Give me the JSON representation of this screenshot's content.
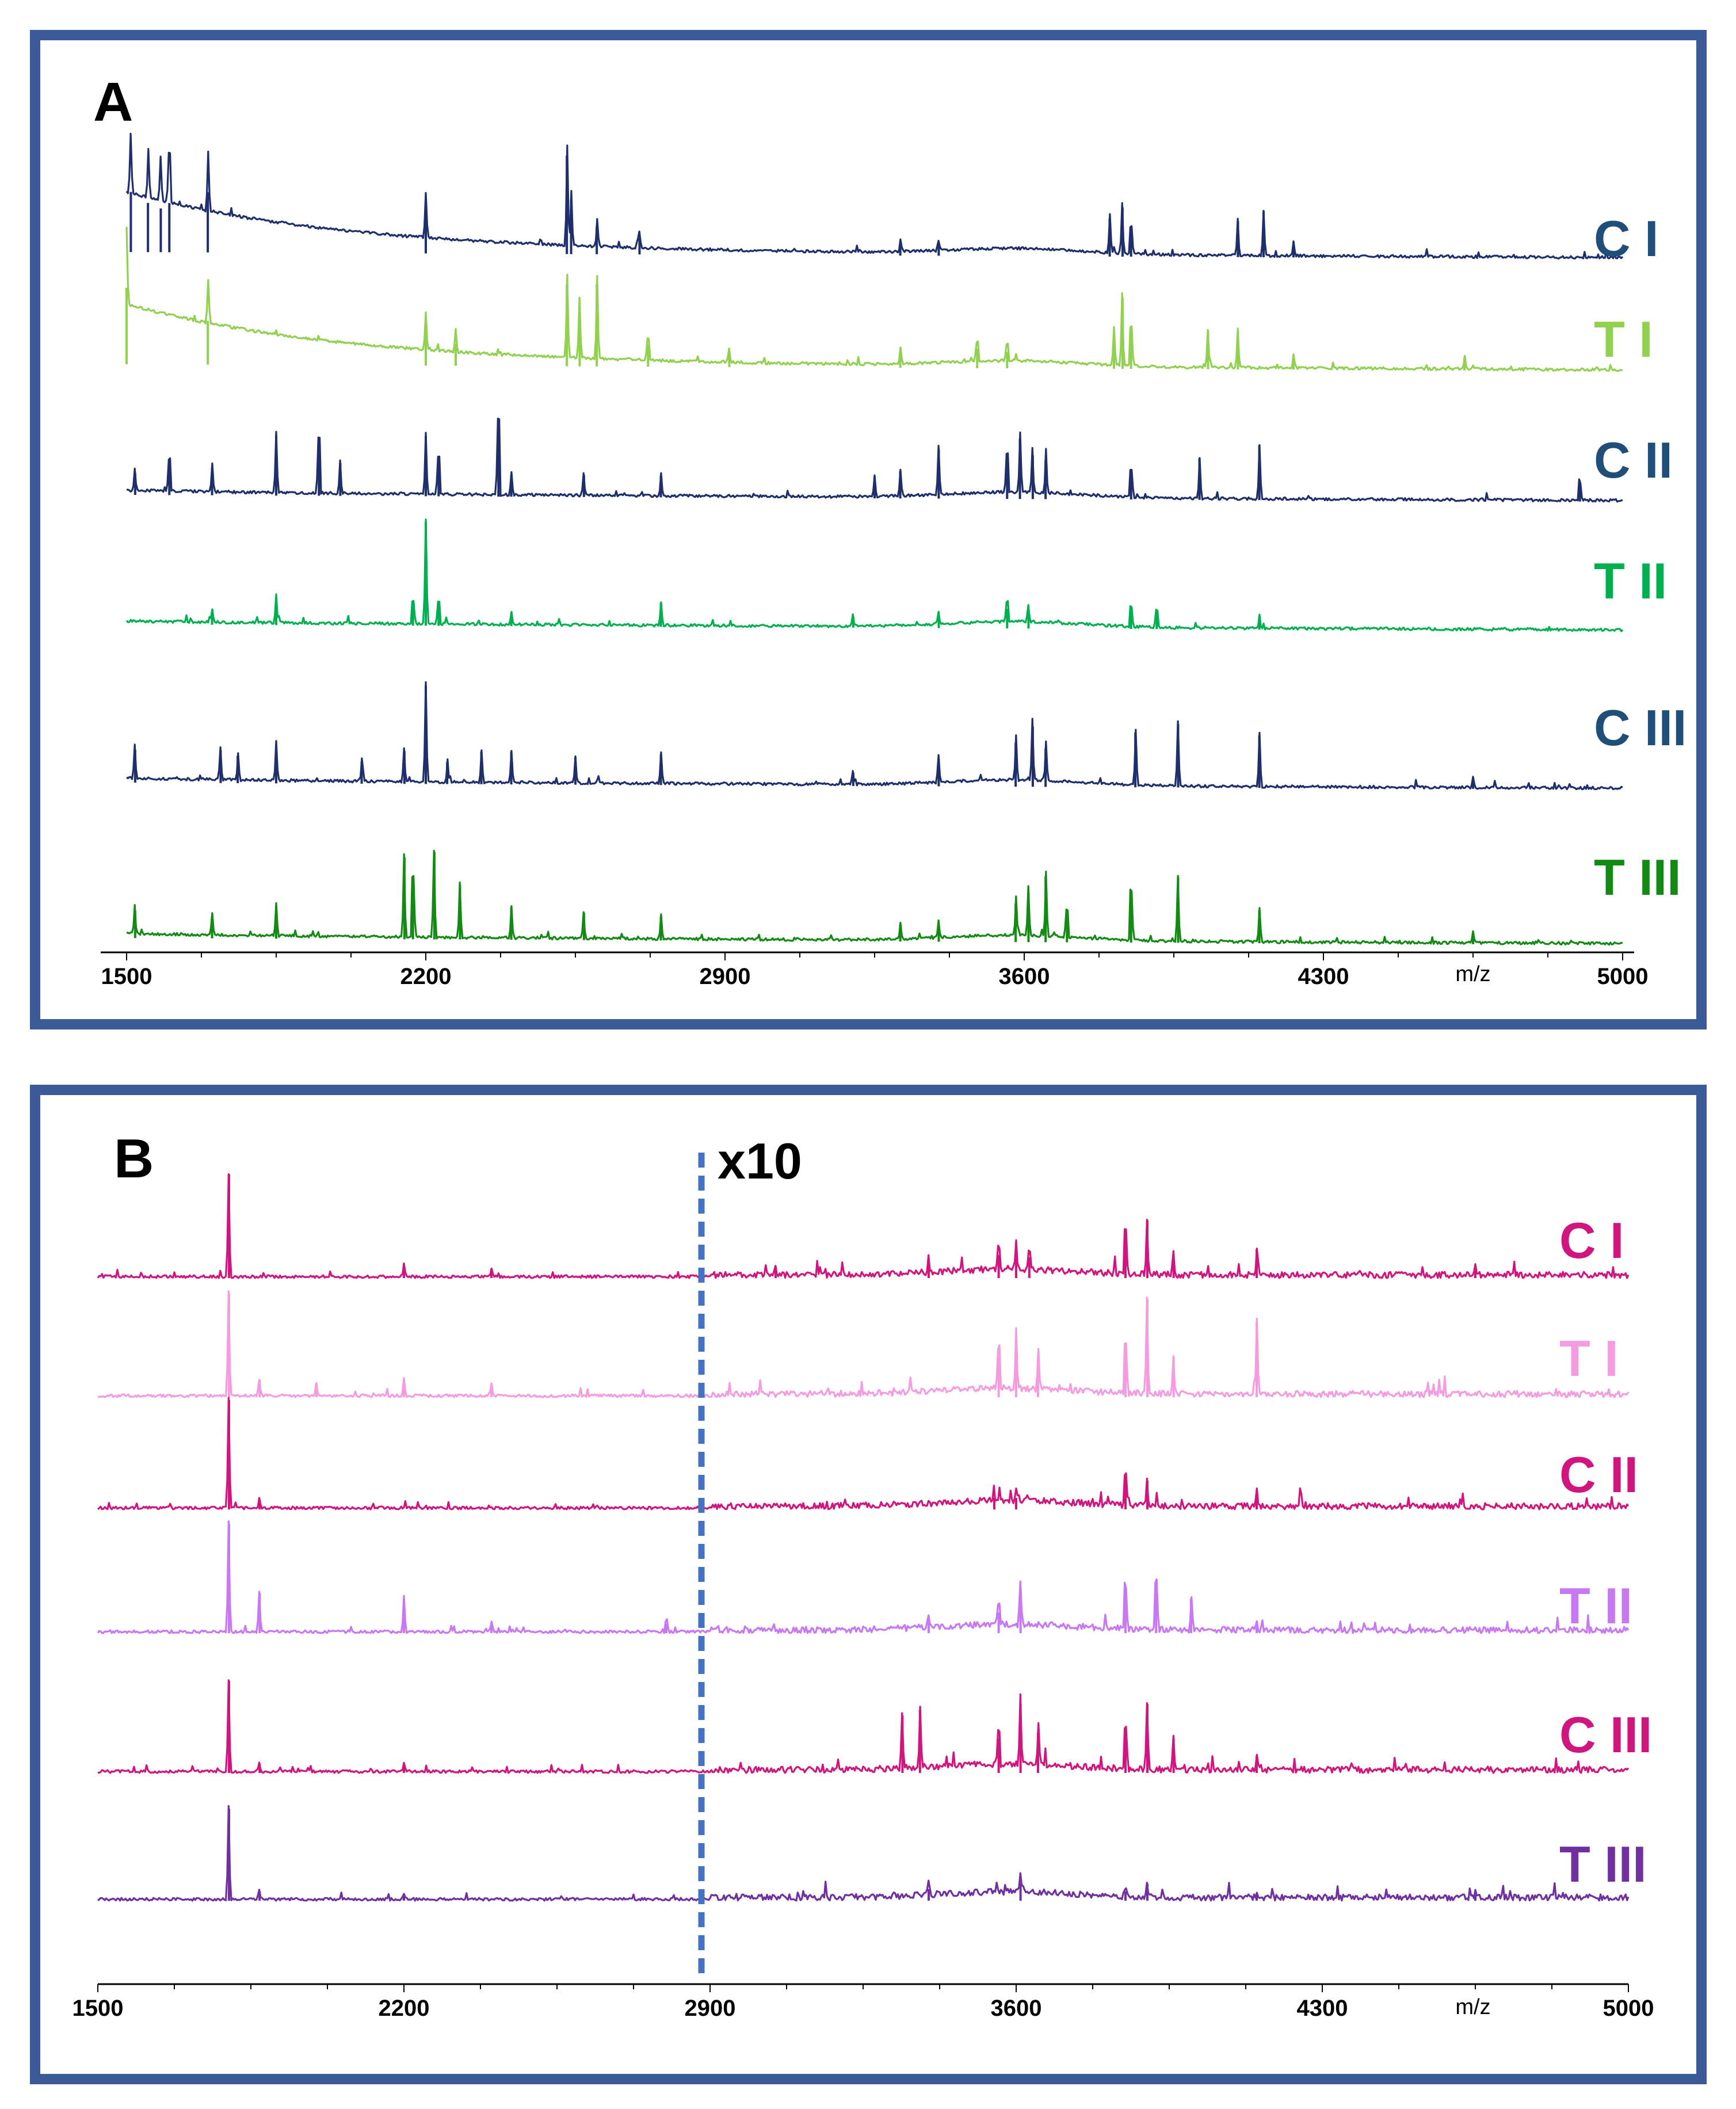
{
  "chart_data": [
    {
      "panel": "A",
      "type": "line",
      "title": "",
      "xlabel": "m/z",
      "xlim": [
        1500,
        5000
      ],
      "x_ticks": [
        1500,
        2200,
        2900,
        3600,
        4300,
        5000
      ],
      "x_tick_labels": [
        "1500",
        "2200",
        "2900",
        "3600",
        "4300",
        "5000"
      ],
      "scale_annotation": "",
      "series": [
        {
          "name": "C I",
          "color": "#1f2f6b",
          "label_color": "#1f4e79",
          "baseline": 0.08,
          "decay": 0.9,
          "peaks": [
            [
              1510,
              0.55
            ],
            [
              1550,
              0.45
            ],
            [
              1580,
              0.4
            ],
            [
              1600,
              0.45
            ],
            [
              1690,
              0.55
            ],
            [
              2200,
              0.42
            ],
            [
              2530,
              0.9
            ],
            [
              2540,
              0.5
            ],
            [
              2600,
              0.25
            ],
            [
              2700,
              0.15
            ],
            [
              3310,
              0.1
            ],
            [
              3400,
              0.1
            ],
            [
              3800,
              0.35
            ],
            [
              3830,
              0.45
            ],
            [
              3850,
              0.25
            ],
            [
              4100,
              0.33
            ],
            [
              4160,
              0.42
            ],
            [
              4230,
              0.14
            ]
          ]
        },
        {
          "name": "T I",
          "color": "#92d050",
          "label_color": "#92d050",
          "baseline": 0.08,
          "decay": 0.9,
          "peaks": [
            [
              1500,
              0.7
            ],
            [
              1690,
              0.4
            ],
            [
              2200,
              0.35
            ],
            [
              2270,
              0.2
            ],
            [
              2530,
              0.75
            ],
            [
              2560,
              0.55
            ],
            [
              2600,
              0.75
            ],
            [
              2720,
              0.2
            ],
            [
              2910,
              0.12
            ],
            [
              3310,
              0.15
            ],
            [
              3490,
              0.18
            ],
            [
              3560,
              0.15
            ],
            [
              3810,
              0.35
            ],
            [
              3830,
              0.65
            ],
            [
              3850,
              0.35
            ],
            [
              4030,
              0.35
            ],
            [
              4100,
              0.35
            ],
            [
              4230,
              0.12
            ],
            [
              4630,
              0.12
            ]
          ]
        },
        {
          "name": "C II",
          "color": "#1f2f6b",
          "label_color": "#1f4e79",
          "baseline": 0.08,
          "decay": 0.05,
          "peaks": [
            [
              1520,
              0.2
            ],
            [
              1600,
              0.3
            ],
            [
              1700,
              0.25
            ],
            [
              1850,
              0.55
            ],
            [
              1950,
              0.5
            ],
            [
              2000,
              0.3
            ],
            [
              2200,
              0.55
            ],
            [
              2230,
              0.35
            ],
            [
              2370,
              0.7
            ],
            [
              2400,
              0.2
            ],
            [
              2570,
              0.2
            ],
            [
              2750,
              0.2
            ],
            [
              3250,
              0.2
            ],
            [
              3310,
              0.25
            ],
            [
              3400,
              0.45
            ],
            [
              3560,
              0.35
            ],
            [
              3590,
              0.55
            ],
            [
              3620,
              0.4
            ],
            [
              3650,
              0.35
            ],
            [
              3850,
              0.25
            ],
            [
              4010,
              0.38
            ],
            [
              4150,
              0.5
            ],
            [
              4900,
              0.15
            ]
          ]
        },
        {
          "name": "T II",
          "color": "#00b050",
          "label_color": "#00b050",
          "baseline": 0.08,
          "decay": 0.03,
          "peaks": [
            [
              1700,
              0.12
            ],
            [
              1850,
              0.25
            ],
            [
              2170,
              0.2
            ],
            [
              2200,
              0.95
            ],
            [
              2230,
              0.2
            ],
            [
              2400,
              0.12
            ],
            [
              2750,
              0.22
            ],
            [
              3200,
              0.1
            ],
            [
              3400,
              0.1
            ],
            [
              3560,
              0.18
            ],
            [
              3610,
              0.15
            ],
            [
              3850,
              0.18
            ],
            [
              3910,
              0.15
            ],
            [
              4150,
              0.12
            ]
          ]
        },
        {
          "name": "C III",
          "color": "#1f2f6b",
          "label_color": "#1f4e79",
          "baseline": 0.08,
          "decay": 0.05,
          "peaks": [
            [
              1520,
              0.3
            ],
            [
              1720,
              0.3
            ],
            [
              1760,
              0.25
            ],
            [
              1850,
              0.35
            ],
            [
              2050,
              0.2
            ],
            [
              2150,
              0.3
            ],
            [
              2200,
              0.9
            ],
            [
              2250,
              0.2
            ],
            [
              2330,
              0.3
            ],
            [
              2400,
              0.3
            ],
            [
              2550,
              0.25
            ],
            [
              2750,
              0.28
            ],
            [
              3200,
              0.12
            ],
            [
              3400,
              0.25
            ],
            [
              3580,
              0.4
            ],
            [
              3620,
              0.55
            ],
            [
              3650,
              0.35
            ],
            [
              3860,
              0.5
            ],
            [
              3960,
              0.58
            ],
            [
              4150,
              0.48
            ],
            [
              4650,
              0.1
            ]
          ]
        },
        {
          "name": "T III",
          "color": "#138a13",
          "label_color": "#138a13",
          "baseline": 0.08,
          "decay": 0.05,
          "peaks": [
            [
              1520,
              0.25
            ],
            [
              1700,
              0.2
            ],
            [
              1850,
              0.3
            ],
            [
              2150,
              0.75
            ],
            [
              2170,
              0.55
            ],
            [
              2220,
              0.8
            ],
            [
              2280,
              0.5
            ],
            [
              2400,
              0.3
            ],
            [
              2570,
              0.25
            ],
            [
              2750,
              0.22
            ],
            [
              3310,
              0.15
            ],
            [
              3400,
              0.15
            ],
            [
              3580,
              0.35
            ],
            [
              3610,
              0.45
            ],
            [
              3650,
              0.6
            ],
            [
              3700,
              0.25
            ],
            [
              3850,
              0.45
            ],
            [
              3960,
              0.6
            ],
            [
              4150,
              0.3
            ],
            [
              4650,
              0.1
            ]
          ]
        }
      ]
    },
    {
      "panel": "B",
      "type": "line",
      "title": "",
      "xlabel": "m/z",
      "xlim": [
        1500,
        5000
      ],
      "x_ticks": [
        1500,
        2200,
        2900,
        3600,
        4300,
        5000
      ],
      "x_tick_labels": [
        "1500",
        "2200",
        "2900",
        "3600",
        "4300",
        "5000"
      ],
      "scale_annotation": "x10",
      "scale_boundary": 2900,
      "series": [
        {
          "name": "C I",
          "color": "#d0157f",
          "label_color": "#d0157f",
          "baseline": 0.05,
          "decay": 0.0,
          "peaks": [
            [
              1800,
              0.9
            ],
            [
              2200,
              0.12
            ],
            [
              2400,
              0.08
            ],
            [
              3050,
              0.1
            ],
            [
              3400,
              0.12
            ],
            [
              3560,
              0.2
            ],
            [
              3600,
              0.25
            ],
            [
              3630,
              0.18
            ],
            [
              3850,
              0.4
            ],
            [
              3900,
              0.5
            ],
            [
              3960,
              0.2
            ],
            [
              4150,
              0.25
            ],
            [
              4650,
              0.08
            ]
          ]
        },
        {
          "name": "T I",
          "color": "#f59be0",
          "label_color": "#f59be0",
          "baseline": 0.05,
          "decay": 0.0,
          "peaks": [
            [
              1800,
              0.9
            ],
            [
              1870,
              0.15
            ],
            [
              2000,
              0.12
            ],
            [
              2200,
              0.15
            ],
            [
              2400,
              0.1
            ],
            [
              3560,
              0.35
            ],
            [
              3600,
              0.55
            ],
            [
              3650,
              0.35
            ],
            [
              3850,
              0.45
            ],
            [
              3900,
              0.85
            ],
            [
              3960,
              0.35
            ],
            [
              4150,
              0.65
            ]
          ]
        },
        {
          "name": "C II",
          "color": "#d0157f",
          "label_color": "#d0157f",
          "baseline": 0.05,
          "decay": 0.0,
          "peaks": [
            [
              1800,
              0.95
            ],
            [
              1870,
              0.08
            ],
            [
              3550,
              0.1
            ],
            [
              3600,
              0.1
            ],
            [
              3850,
              0.28
            ],
            [
              3900,
              0.25
            ],
            [
              4150,
              0.15
            ]
          ]
        },
        {
          "name": "T II",
          "color": "#c878f0",
          "label_color": "#c878f0",
          "baseline": 0.05,
          "decay": 0.0,
          "peaks": [
            [
              1800,
              0.95
            ],
            [
              1870,
              0.35
            ],
            [
              2200,
              0.3
            ],
            [
              2400,
              0.08
            ],
            [
              2800,
              0.08
            ],
            [
              3400,
              0.12
            ],
            [
              3560,
              0.18
            ],
            [
              3610,
              0.38
            ],
            [
              3850,
              0.38
            ],
            [
              3920,
              0.42
            ],
            [
              4000,
              0.3
            ],
            [
              4150,
              0.08
            ]
          ]
        },
        {
          "name": "C III",
          "color": "#d0157f",
          "label_color": "#d0157f",
          "baseline": 0.05,
          "decay": 0.0,
          "peaks": [
            [
              1800,
              0.8
            ],
            [
              1870,
              0.08
            ],
            [
              2200,
              0.08
            ],
            [
              3340,
              0.5
            ],
            [
              3380,
              0.55
            ],
            [
              3560,
              0.3
            ],
            [
              3610,
              0.6
            ],
            [
              3650,
              0.35
            ],
            [
              3850,
              0.35
            ],
            [
              3900,
              0.6
            ],
            [
              3960,
              0.3
            ],
            [
              4150,
              0.15
            ]
          ]
        },
        {
          "name": "T III",
          "color": "#7030a0",
          "label_color": "#7030a0",
          "baseline": 0.05,
          "decay": 0.0,
          "peaks": [
            [
              1800,
              0.8
            ],
            [
              1870,
              0.08
            ],
            [
              2200,
              0.05
            ],
            [
              3400,
              0.1
            ],
            [
              3610,
              0.15
            ],
            [
              3850,
              0.08
            ],
            [
              3900,
              0.15
            ],
            [
              4150,
              0.06
            ],
            [
              4650,
              0.05
            ]
          ]
        }
      ]
    }
  ]
}
